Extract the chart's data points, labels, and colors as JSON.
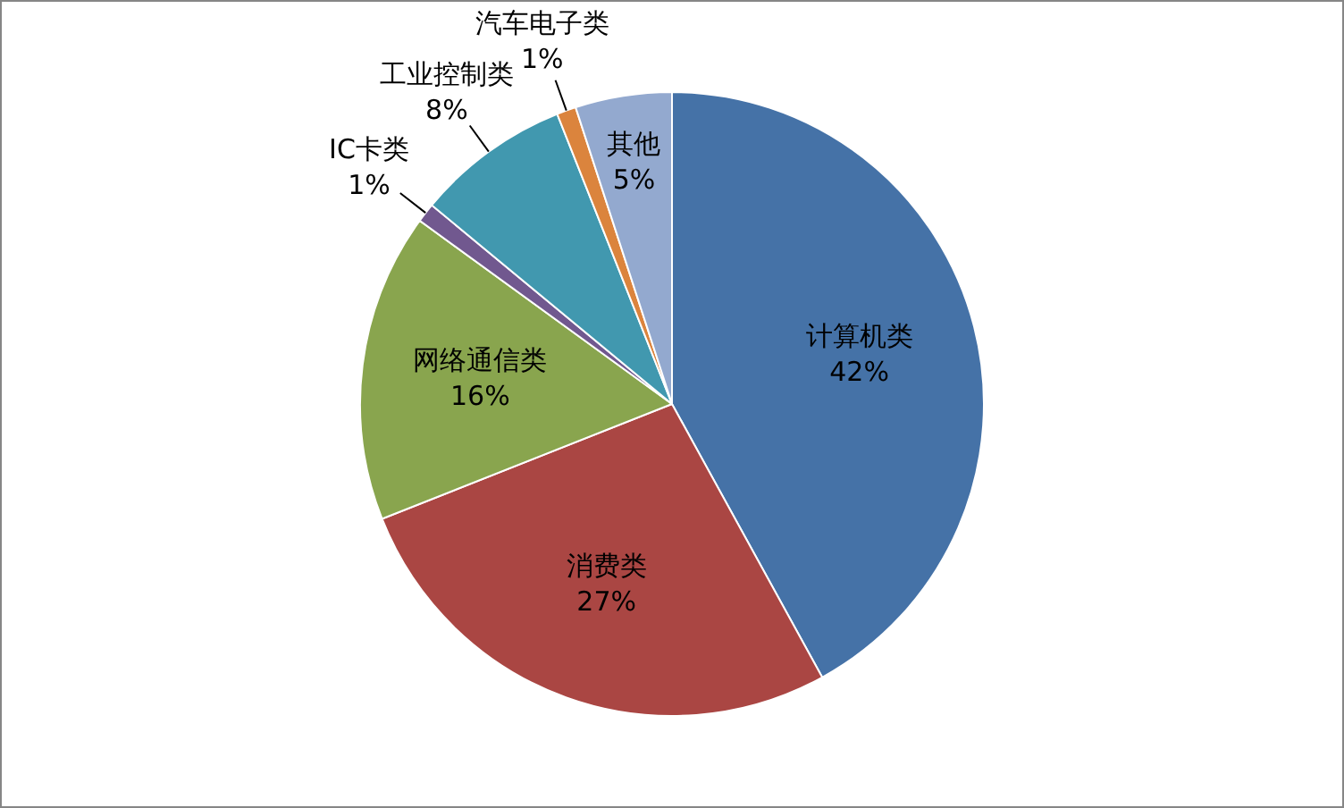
{
  "chart_data": {
    "type": "pie",
    "categories": [
      "计算机类",
      "消费类",
      "网络通信类",
      "IC卡类",
      "工业控制类",
      "汽车电子类",
      "其他"
    ],
    "values": [
      42,
      27,
      16,
      1,
      8,
      1,
      5
    ],
    "value_labels": [
      "42%",
      "27%",
      "16%",
      "1%",
      "8%",
      "1%",
      "5%"
    ],
    "colors": [
      "#4572a7",
      "#aa4643",
      "#89a54e",
      "#71588f",
      "#4198af",
      "#db843d",
      "#93a9cf"
    ],
    "legend": false
  }
}
